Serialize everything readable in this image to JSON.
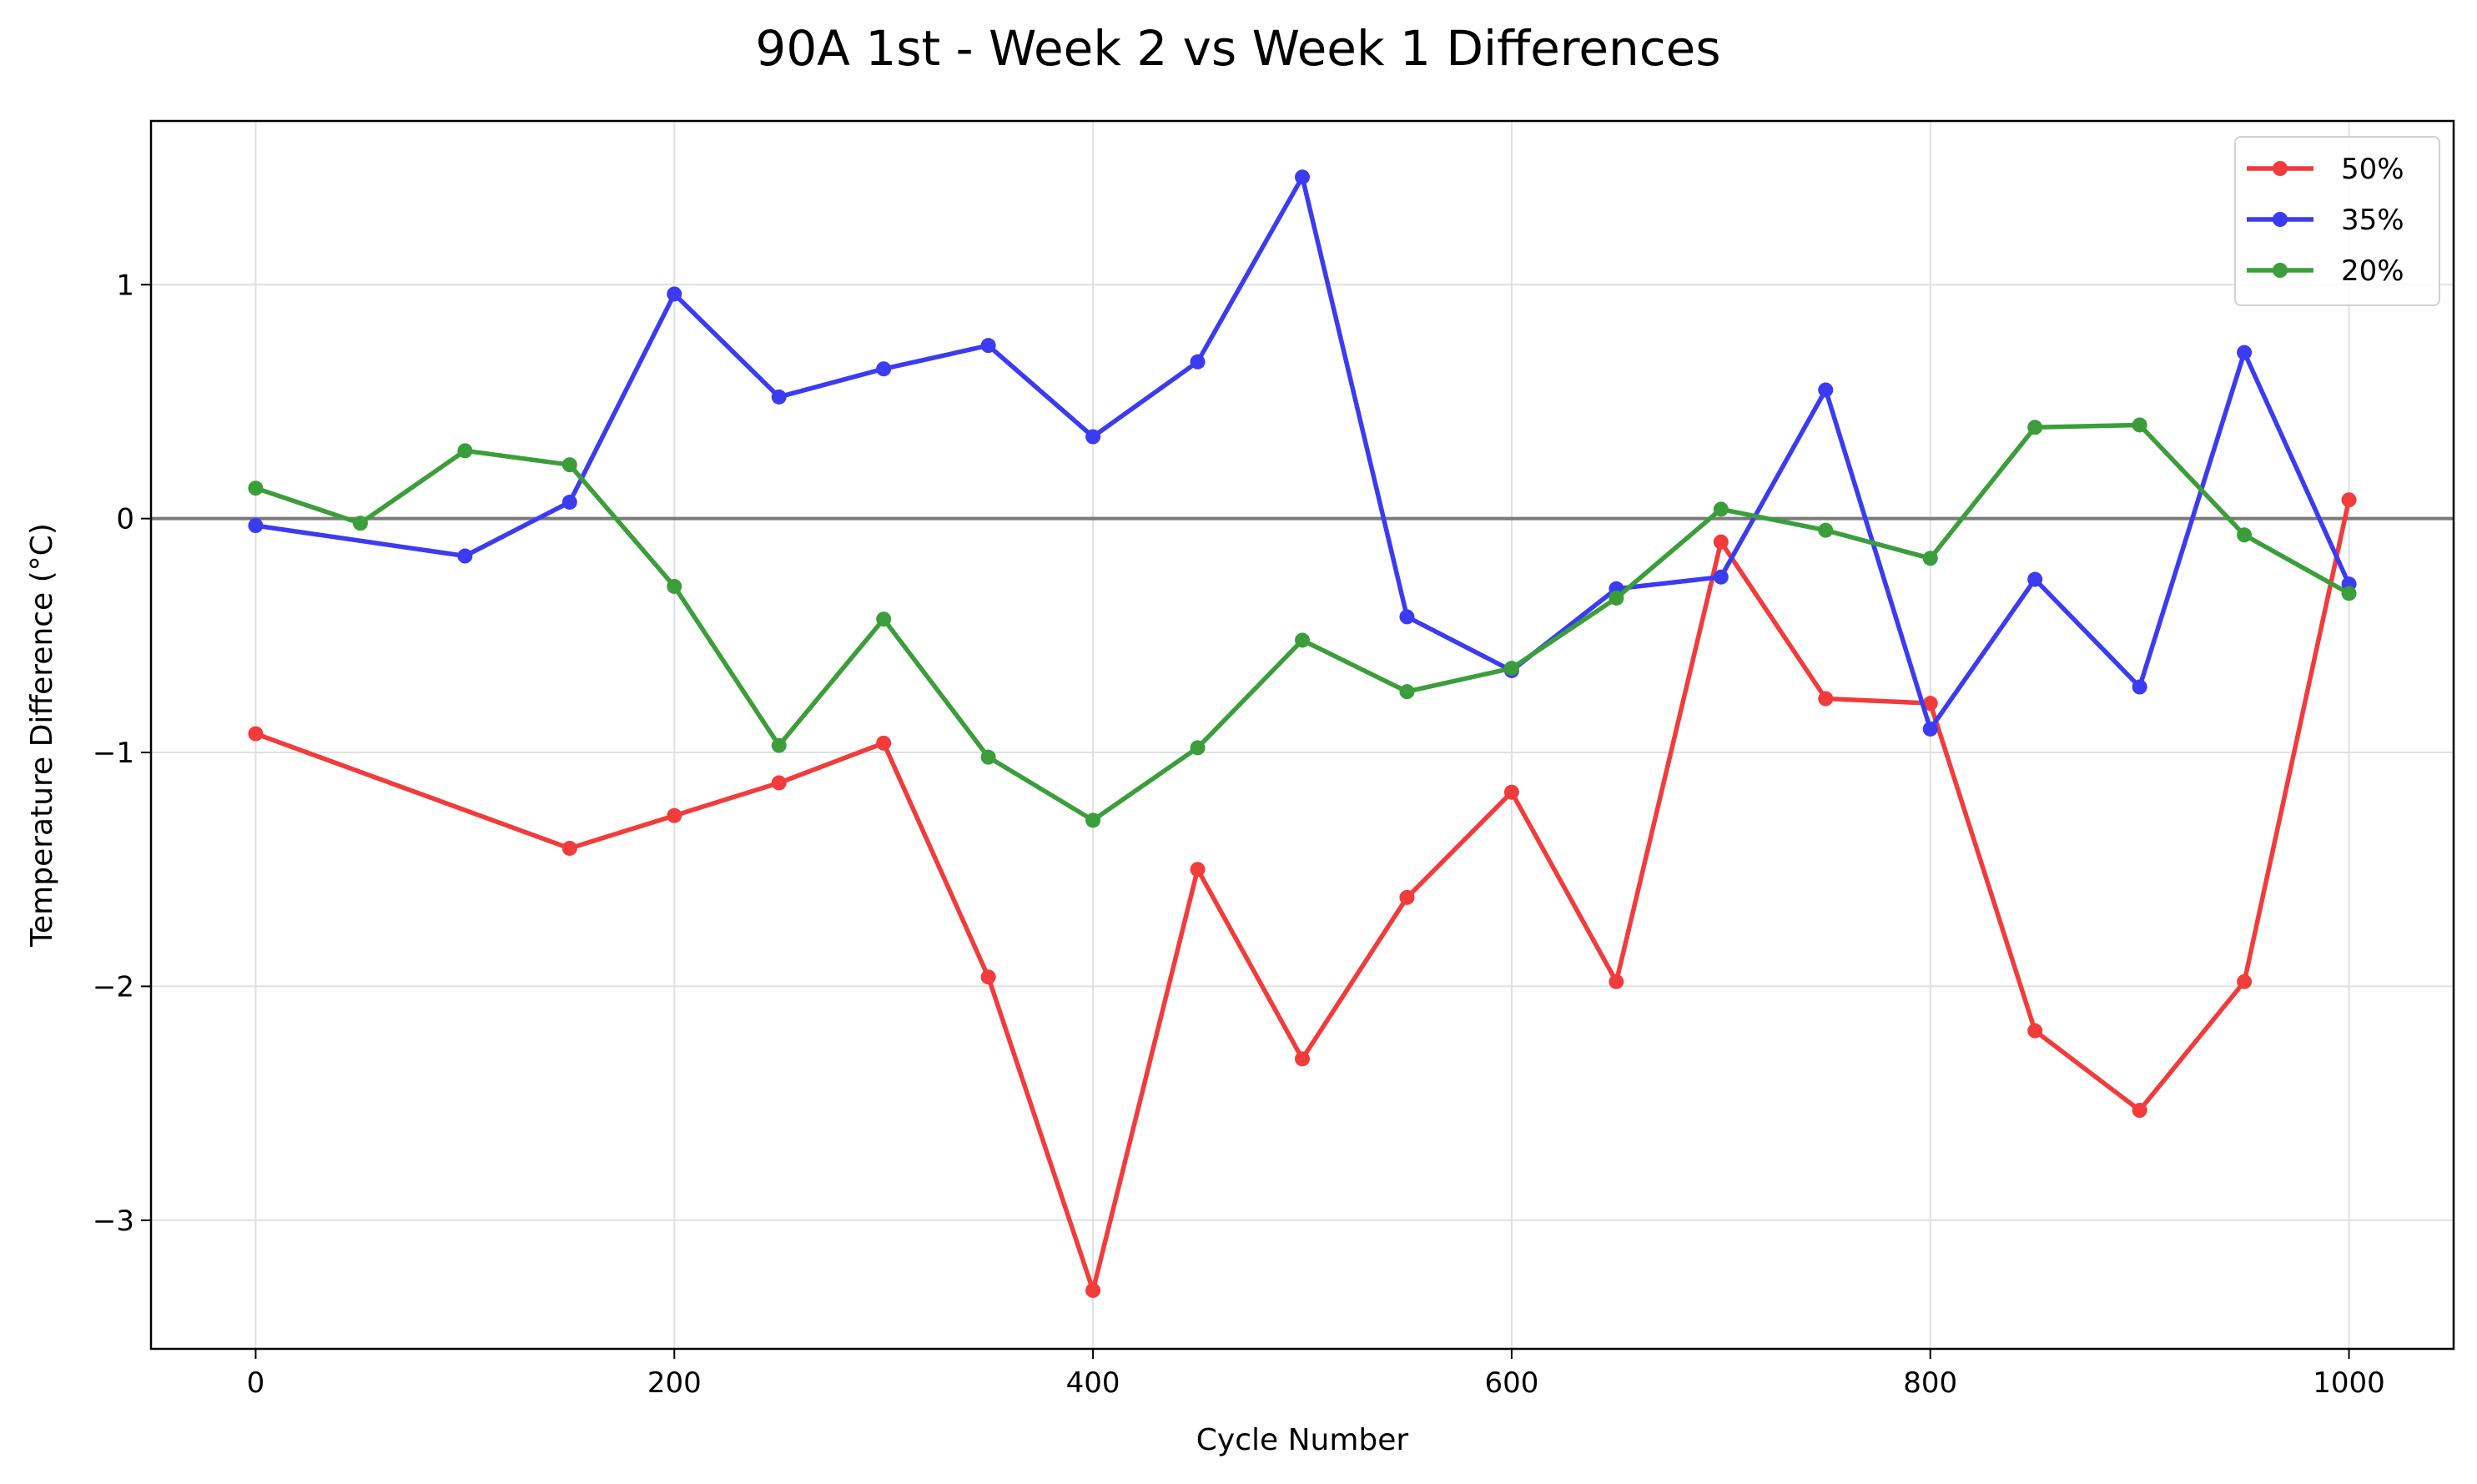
{
  "chart_data": {
    "type": "line",
    "title": "90A 1st - Week 2 vs Week 1 Differences",
    "xlabel": "Cycle Number",
    "ylabel": "Temperature Difference (°C)",
    "xlim": [
      -50,
      1050
    ],
    "ylim": [
      -3.55,
      1.7
    ],
    "xticks": [
      0,
      200,
      400,
      600,
      800,
      1000
    ],
    "yticks": [
      -3,
      -2,
      -1,
      0,
      1
    ],
    "ytick_labels": [
      "−3",
      "−2",
      "−1",
      "0",
      "1"
    ],
    "grid": true,
    "reference_line_y": 0,
    "legend_position": "top-right",
    "series": [
      {
        "name": "50%",
        "color": "#f23b3b",
        "points": [
          [
            0,
            -0.92
          ],
          [
            150,
            -1.41
          ],
          [
            200,
            -1.27
          ],
          [
            250,
            -1.13
          ],
          [
            300,
            -0.96
          ],
          [
            350,
            -1.96
          ],
          [
            400,
            -3.3
          ],
          [
            450,
            -1.5
          ],
          [
            500,
            -2.31
          ],
          [
            550,
            -1.62
          ],
          [
            600,
            -1.17
          ],
          [
            650,
            -1.98
          ],
          [
            700,
            -0.1
          ],
          [
            750,
            -0.77
          ],
          [
            800,
            -0.79
          ],
          [
            850,
            -2.19
          ],
          [
            900,
            -2.53
          ],
          [
            950,
            -1.98
          ],
          [
            1000,
            0.08
          ]
        ]
      },
      {
        "name": "35%",
        "color": "#3b3bf2",
        "points": [
          [
            0,
            -0.03
          ],
          [
            100,
            -0.16
          ],
          [
            150,
            0.07
          ],
          [
            200,
            0.96
          ],
          [
            250,
            0.52
          ],
          [
            300,
            0.64
          ],
          [
            350,
            0.74
          ],
          [
            400,
            0.35
          ],
          [
            450,
            0.67
          ],
          [
            500,
            1.46
          ],
          [
            550,
            -0.42
          ],
          [
            600,
            -0.65
          ],
          [
            650,
            -0.3
          ],
          [
            700,
            -0.25
          ],
          [
            750,
            0.55
          ],
          [
            800,
            -0.9
          ],
          [
            850,
            -0.26
          ],
          [
            900,
            -0.72
          ],
          [
            950,
            0.71
          ],
          [
            1000,
            -0.28
          ]
        ]
      },
      {
        "name": "20%",
        "color": "#3b9e3b",
        "points": [
          [
            0,
            0.13
          ],
          [
            50,
            -0.02
          ],
          [
            100,
            0.29
          ],
          [
            150,
            0.23
          ],
          [
            200,
            -0.29
          ],
          [
            250,
            -0.97
          ],
          [
            300,
            -0.43
          ],
          [
            350,
            -1.02
          ],
          [
            400,
            -1.29
          ],
          [
            450,
            -0.98
          ],
          [
            500,
            -0.52
          ],
          [
            550,
            -0.74
          ],
          [
            600,
            -0.64
          ],
          [
            650,
            -0.34
          ],
          [
            700,
            0.04
          ],
          [
            750,
            -0.05
          ],
          [
            800,
            -0.17
          ],
          [
            850,
            0.39
          ],
          [
            900,
            0.4
          ],
          [
            950,
            -0.07
          ],
          [
            1000,
            -0.32
          ]
        ]
      }
    ]
  }
}
